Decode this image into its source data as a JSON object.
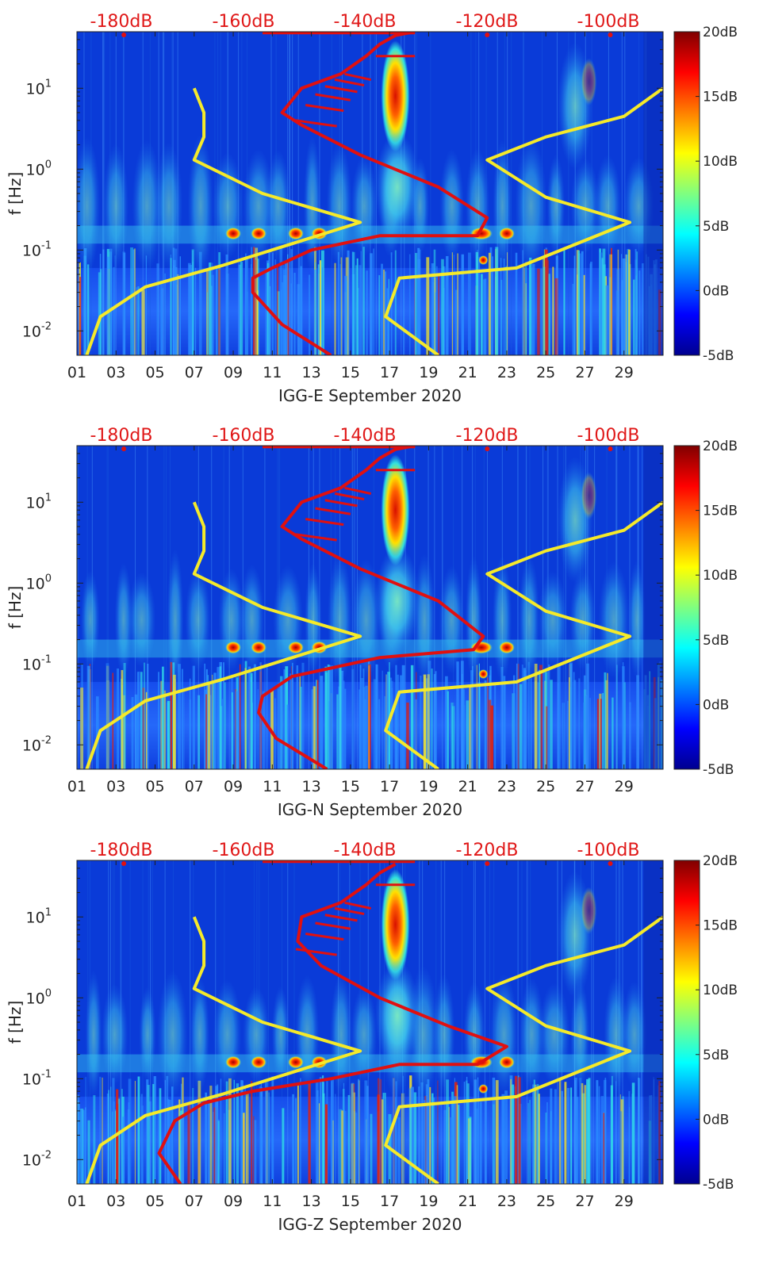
{
  "figure": {
    "top_axis_labels": [
      "-180dB",
      "-160dB",
      "-140dB",
      "-120dB",
      "-100dB"
    ],
    "x_tick_labels": [
      "01",
      "03",
      "05",
      "07",
      "09",
      "11",
      "13",
      "15",
      "17",
      "19",
      "21",
      "23",
      "25",
      "27",
      "29"
    ],
    "y_tick_labels": [
      "10^-2",
      "10^-1",
      "10^0",
      "10^1"
    ],
    "ylabel": "f [Hz]",
    "colorbar_labels": [
      "20dB",
      "15dB",
      "10dB",
      "5dB",
      "0dB",
      "-5dB"
    ]
  },
  "colors": {
    "red_curve": "#e01010",
    "yellow_curve": "#f5ea2a",
    "top_label": "#e01818",
    "background_spectrogram": "#0a3bd8"
  },
  "chart_data": [
    {
      "type": "heatmap",
      "xlabel": "IGG-E September 2020",
      "ylabel": "f [Hz]",
      "x_axis": "day of September 2020",
      "xlim": [
        1,
        31
      ],
      "ylim": [
        0.005,
        50
      ],
      "y_scale": "log",
      "colorbar": {
        "ticks": [
          -5,
          0,
          5,
          10,
          15,
          20
        ],
        "unit": "dB",
        "range": [
          -5,
          20
        ],
        "colormap": "jet"
      },
      "top_axis": {
        "ticks": [
          -180,
          -160,
          -140,
          -120,
          -100
        ],
        "unit": "dB"
      },
      "series": [
        {
          "color": "yellow",
          "x": [
            1.5,
            2.2,
            4.5,
            8.5,
            15.5,
            10.5,
            7.0,
            7.5,
            7.5,
            7.0
          ],
          "y": [
            0.005,
            0.015,
            0.035,
            0.065,
            0.22,
            0.5,
            1.3,
            2.5,
            5.0,
            10.0
          ]
        },
        {
          "color": "yellow",
          "x": [
            19.5,
            16.8,
            17.5,
            23.5,
            29.3,
            25.0,
            22.0,
            25.0,
            29.0,
            31.0
          ],
          "y": [
            0.005,
            0.015,
            0.045,
            0.06,
            0.22,
            0.45,
            1.3,
            2.5,
            4.5,
            10.0
          ]
        },
        {
          "color": "red",
          "x": [
            14.0,
            11.5,
            10.0,
            10.0,
            11.0,
            13.0,
            16.5,
            21.5,
            22.0,
            19.5,
            15.5,
            12.5,
            11.5,
            12.5,
            14.5,
            15.8,
            16.5,
            17.3,
            18.3
          ],
          "y": [
            0.005,
            0.012,
            0.03,
            0.045,
            0.06,
            0.1,
            0.15,
            0.15,
            0.25,
            0.6,
            1.5,
            3.5,
            5.0,
            10.0,
            15.0,
            25.0,
            35.0,
            45.0,
            50.0
          ]
        }
      ]
    },
    {
      "type": "heatmap",
      "xlabel": "IGG-N September 2020",
      "ylabel": "f [Hz]",
      "x_axis": "day of September 2020",
      "xlim": [
        1,
        31
      ],
      "ylim": [
        0.005,
        50
      ],
      "y_scale": "log",
      "colorbar": {
        "ticks": [
          -5,
          0,
          5,
          10,
          15,
          20
        ],
        "unit": "dB",
        "range": [
          -5,
          20
        ],
        "colormap": "jet"
      },
      "top_axis": {
        "ticks": [
          -180,
          -160,
          -140,
          -120,
          -100
        ],
        "unit": "dB"
      },
      "series": [
        {
          "color": "yellow",
          "x": [
            1.5,
            2.2,
            4.5,
            8.5,
            15.5,
            10.5,
            7.0,
            7.5,
            7.5,
            7.0
          ],
          "y": [
            0.005,
            0.015,
            0.035,
            0.065,
            0.22,
            0.5,
            1.3,
            2.5,
            5.0,
            10.0
          ]
        },
        {
          "color": "yellow",
          "x": [
            19.5,
            16.8,
            17.5,
            23.5,
            29.3,
            25.0,
            22.0,
            25.0,
            29.0,
            31.0
          ],
          "y": [
            0.005,
            0.015,
            0.045,
            0.06,
            0.22,
            0.45,
            1.3,
            2.5,
            4.5,
            10.0
          ]
        },
        {
          "color": "red",
          "x": [
            13.8,
            11.2,
            10.3,
            10.5,
            12.0,
            16.5,
            21.3,
            21.8,
            19.5,
            15.5,
            12.5,
            11.5,
            12.5,
            14.5,
            15.8,
            16.5,
            17.3,
            18.3
          ],
          "y": [
            0.005,
            0.012,
            0.025,
            0.04,
            0.07,
            0.12,
            0.15,
            0.22,
            0.6,
            1.5,
            3.5,
            5.0,
            10.0,
            15.0,
            25.0,
            35.0,
            45.0,
            50.0
          ]
        }
      ]
    },
    {
      "type": "heatmap",
      "xlabel": "IGG-Z September 2020",
      "ylabel": "f [Hz]",
      "x_axis": "day of September 2020",
      "xlim": [
        1,
        31
      ],
      "ylim": [
        0.005,
        50
      ],
      "y_scale": "log",
      "colorbar": {
        "ticks": [
          -5,
          0,
          5,
          10,
          15,
          20
        ],
        "unit": "dB",
        "range": [
          -5,
          20
        ],
        "colormap": "jet"
      },
      "top_axis": {
        "ticks": [
          -180,
          -160,
          -140,
          -120,
          -100
        ],
        "unit": "dB"
      },
      "series": [
        {
          "color": "yellow",
          "x": [
            1.5,
            2.2,
            4.5,
            8.5,
            15.5,
            10.5,
            7.0,
            7.5,
            7.5,
            7.0
          ],
          "y": [
            0.005,
            0.015,
            0.035,
            0.065,
            0.22,
            0.5,
            1.3,
            2.5,
            5.0,
            10.0
          ]
        },
        {
          "color": "yellow",
          "x": [
            19.5,
            16.8,
            17.5,
            23.5,
            29.3,
            25.0,
            22.0,
            25.0,
            29.0,
            31.0
          ],
          "y": [
            0.005,
            0.015,
            0.045,
            0.06,
            0.22,
            0.45,
            1.3,
            2.5,
            4.5,
            10.0
          ]
        },
        {
          "color": "red",
          "x": [
            6.3,
            5.2,
            6.0,
            7.5,
            10.0,
            14.0,
            17.5,
            21.5,
            23.0,
            20.0,
            16.5,
            13.5,
            12.3,
            12.5,
            14.5,
            15.8,
            16.5,
            17.3
          ],
          "y": [
            0.005,
            0.012,
            0.03,
            0.05,
            0.07,
            0.1,
            0.15,
            0.15,
            0.25,
            0.45,
            1.0,
            2.5,
            5.0,
            10.0,
            15.0,
            25.0,
            35.0,
            45.0
          ]
        }
      ]
    }
  ]
}
